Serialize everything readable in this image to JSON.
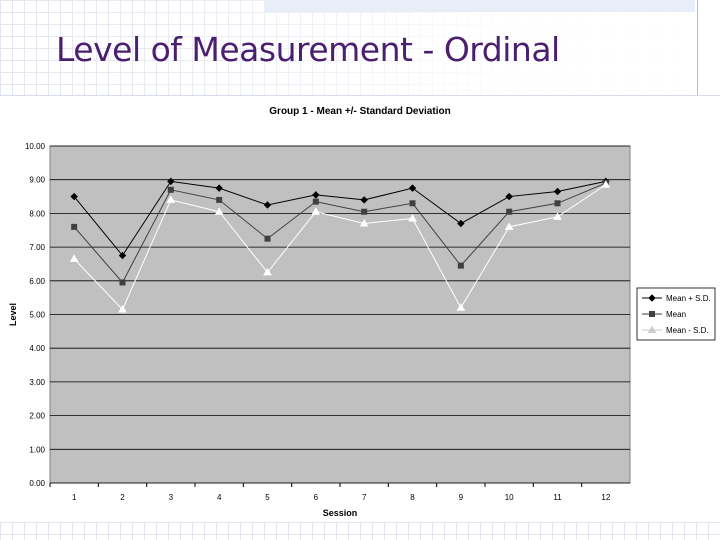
{
  "slide": {
    "title": "Level of Measurement - Ordinal"
  },
  "chart_data": {
    "type": "line",
    "title": "Group 1 - Mean +/- Standard Deviation",
    "xlabel": "Session",
    "ylabel": "Level",
    "categories": [
      "1",
      "2",
      "3",
      "4",
      "5",
      "6",
      "7",
      "8",
      "9",
      "10",
      "11",
      "12"
    ],
    "ylim": [
      0,
      10
    ],
    "yticks": [
      "0.00",
      "1.00",
      "2.00",
      "3.00",
      "4.00",
      "5.00",
      "6.00",
      "7.00",
      "8.00",
      "9.00",
      "10.00"
    ],
    "grid": "horizontal",
    "plot_background": "#c0c0c0",
    "legend_position": "right",
    "series": [
      {
        "name": "Mean + S.D.",
        "marker": "diamond",
        "color": "#000000",
        "values": [
          8.5,
          6.75,
          8.95,
          8.75,
          8.25,
          8.55,
          8.4,
          8.75,
          7.7,
          8.5,
          8.65,
          8.95
        ]
      },
      {
        "name": "Mean",
        "marker": "square",
        "color": "#404040",
        "values": [
          7.6,
          5.95,
          8.7,
          8.4,
          7.25,
          8.35,
          8.05,
          8.3,
          6.45,
          8.05,
          8.3,
          8.9
        ]
      },
      {
        "name": "Mean - S.D.",
        "marker": "triangle",
        "color": "#ffffff",
        "values": [
          6.65,
          5.15,
          8.4,
          8.05,
          6.25,
          8.05,
          7.7,
          7.85,
          5.2,
          7.6,
          7.9,
          8.85
        ]
      }
    ]
  }
}
